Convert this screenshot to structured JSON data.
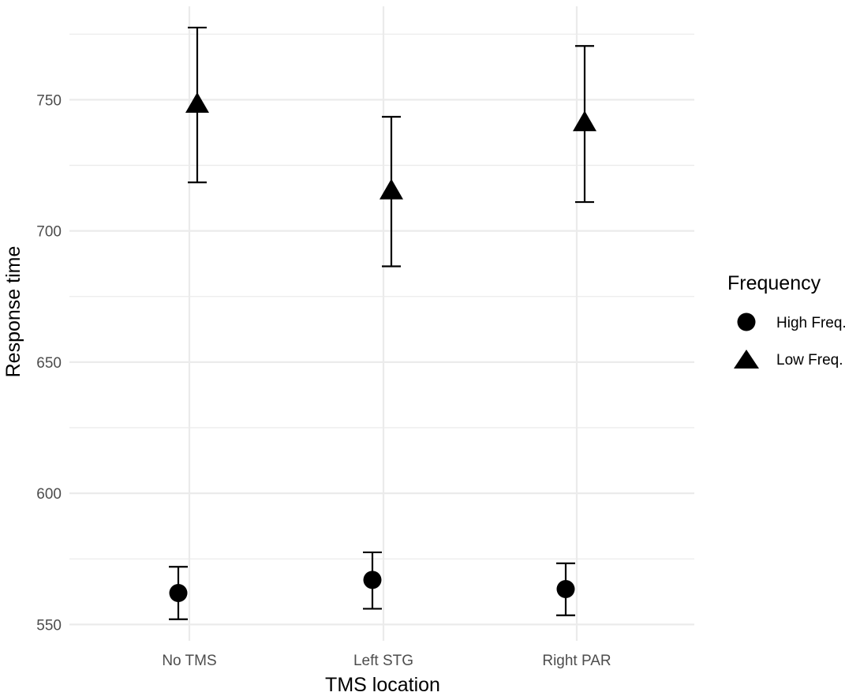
{
  "chart_data": {
    "type": "scatter",
    "xlabel": "TMS location",
    "ylabel": "Response time",
    "categories": [
      "No TMS",
      "Left STG",
      "Right PAR"
    ],
    "ylim": [
      545,
      782
    ],
    "yticks": [
      550,
      600,
      650,
      700,
      750
    ],
    "grid": true,
    "error_bars": true,
    "legend": {
      "title": "Frequency",
      "placement": "right"
    },
    "series": [
      {
        "name": "High Freq.",
        "marker": "circle",
        "values": [
          562,
          567,
          563.5
        ],
        "lower": [
          552,
          556,
          553.5
        ],
        "upper": [
          572,
          577.5,
          573.3
        ]
      },
      {
        "name": "Low Freq.",
        "marker": "triangle",
        "values": [
          748,
          715,
          741
        ],
        "lower": [
          718.5,
          686.5,
          711
        ],
        "upper": [
          777.5,
          743.5,
          770.5
        ]
      }
    ],
    "colors": {
      "marks": "#000000",
      "grid": "#ebebeb",
      "tick_text": "#4d4d4d"
    }
  }
}
